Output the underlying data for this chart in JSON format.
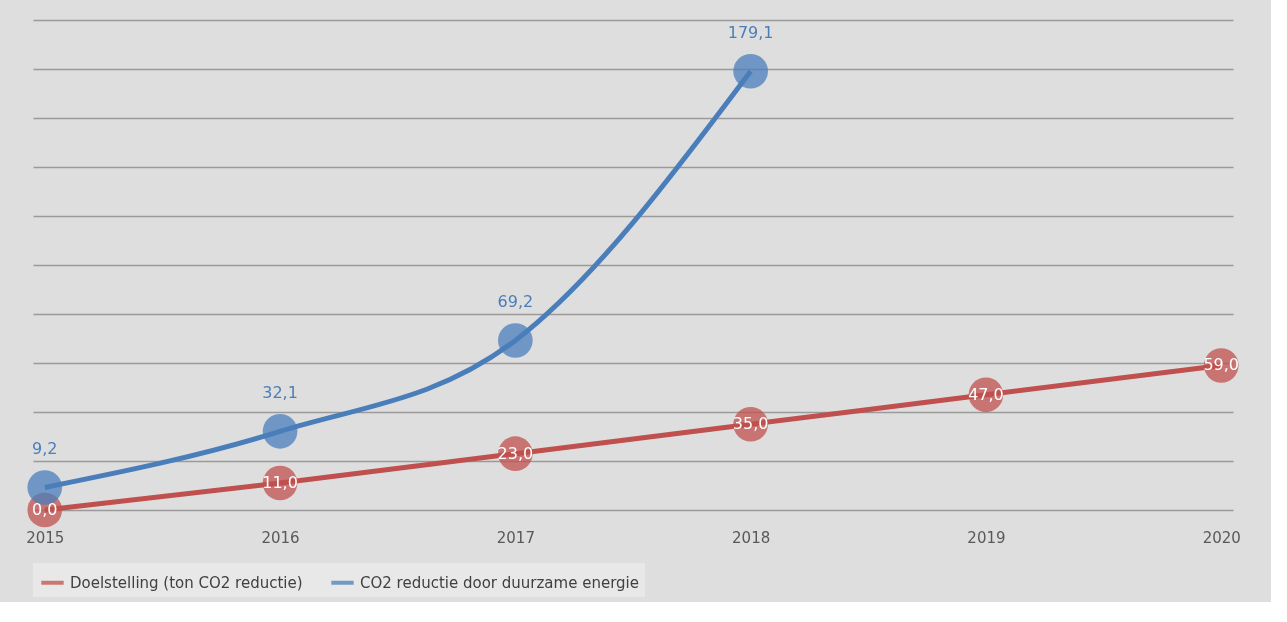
{
  "chart_data": {
    "type": "line",
    "categories": [
      "2015",
      "2016",
      "2017",
      "2018",
      "2019",
      "2020"
    ],
    "series": [
      {
        "name": "Doelstelling (ton CO2 reductie)",
        "color": "#c0504d",
        "values": [
          0,
          11,
          23,
          35,
          47,
          59
        ],
        "value_labels": [
          "0,0",
          "11,0",
          "23,0",
          "35,0",
          "47,0",
          "59,0"
        ]
      },
      {
        "name": "CO2 reductie door duurzame energie",
        "color": "#4a7ebb",
        "values": [
          9.2,
          32.1,
          69.2,
          179.1,
          null,
          null
        ],
        "value_labels": [
          "9,2",
          "32,1",
          "69,2",
          "179,1",
          null,
          null
        ]
      }
    ],
    "ylim": [
      0,
      200
    ],
    "yticks": [
      {
        "value": 0,
        "label": null
      },
      {
        "value": 20,
        "label": null
      },
      {
        "value": 40,
        "label": null
      },
      {
        "value": 60,
        "label": null
      },
      {
        "value": 80,
        "label": null
      },
      {
        "value": 100,
        "label": null
      },
      {
        "value": 120,
        "label": null
      },
      {
        "value": 140,
        "label": null
      },
      {
        "value": 160,
        "label": null
      },
      {
        "value": 180,
        "label": null
      },
      {
        "value": 200,
        "label": null
      }
    ],
    "tick_labels": "x",
    "grid": "y",
    "legend": "bottom",
    "marker": "circle",
    "line_style": "solid"
  }
}
